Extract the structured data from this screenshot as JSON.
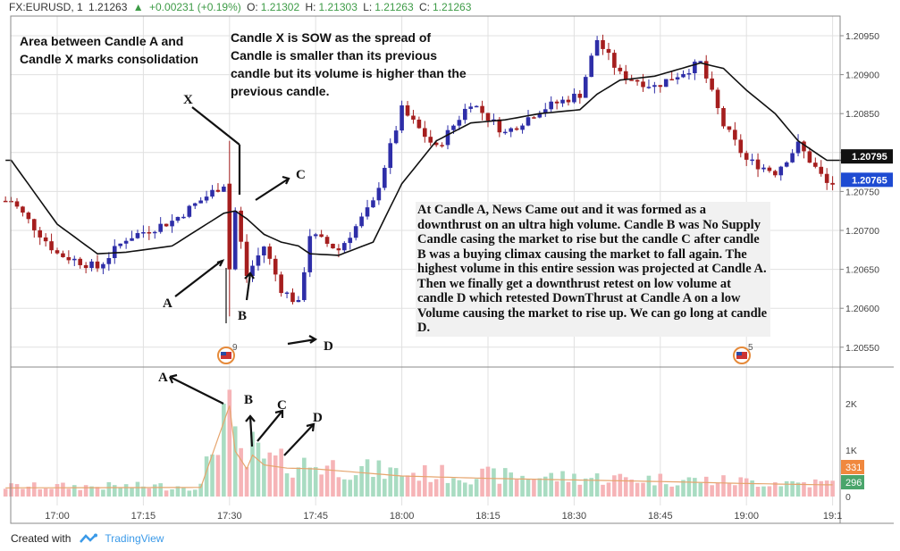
{
  "header": {
    "symbol": "FX:EURUSD, 1",
    "price": "1.21263",
    "change": "+0.00231 (+0.19%)",
    "o_label": "O:",
    "o": "1.21302",
    "h_label": "H:",
    "h": "1.21303",
    "l_label": "L:",
    "l": "1.21263",
    "c_label": "C:",
    "c": "1.21263"
  },
  "annotations": {
    "box_left": "Area between Candle A and Candle X marks consolidation",
    "box_sow": "Candle X is SOW as the spread of Candle is smaller than its previous candle but its volume is higher than the previous candle.",
    "box_main": "At Candle A, News Came out and it was formed as a downthrust on an ultra high volume. Candle B was No Supply Candle casing the market to rise but the candle C after candle B was a buying climax causing the market to fall again. The highest volume in this entire session was projected at Candle A. Then we finally get a downthrust retest on low volume at candle D which retested DownThrust at Candle A on a low Volume causing the market to rise up. We can go long at candle D."
  },
  "footer": {
    "created_with": "Created with",
    "brand": "TradingView"
  },
  "colors": {
    "up": "#2e2ea8",
    "down": "#a51e1e",
    "ma": "#111111",
    "vol_up": "#a9dcc2",
    "vol_down": "#f6b4b7",
    "vol_ma": "#e6a56e",
    "grid": "#e0e0e0"
  },
  "chart_data": {
    "type": "candlestick",
    "x_ticks": [
      "17:00",
      "17:15",
      "17:30",
      "17:45",
      "18:00",
      "18:15",
      "18:30",
      "18:45",
      "19:00",
      "19:1"
    ],
    "y_ticks": [
      "1.20950",
      "1.20900",
      "1.20850",
      "1.20800",
      "1.20750",
      "1.20700",
      "1.20650",
      "1.20600",
      "1.20550"
    ],
    "price_labels": {
      "ma": "1.20795",
      "last": "1.20765"
    },
    "volume_ticks": [
      "2K",
      "1K",
      "0"
    ],
    "volume_labels": {
      "vol_ma": "331",
      "last_vol": "296"
    },
    "event_badges": [
      "9",
      "5"
    ],
    "point_labels": [
      "X",
      "A",
      "B",
      "C",
      "D"
    ],
    "volume_labels_letters": [
      "A",
      "B",
      "C",
      "D"
    ],
    "anchors": [
      "16:52",
      "17:00",
      "17:07",
      "17:12",
      "17:20",
      "17:29",
      "17:31",
      "17:33",
      "17:36",
      "17:39",
      "17:42",
      "17:44",
      "17:49",
      "17:55",
      "18:00",
      "18:06",
      "18:12",
      "18:18",
      "18:24",
      "18:31",
      "18:34",
      "18:38",
      "18:44",
      "18:52",
      "18:56",
      "19:00",
      "19:05",
      "19:09",
      "19:14"
    ],
    "anchor_close": [
      1.20738,
      1.2067,
      1.20652,
      1.2069,
      1.20712,
      1.2076,
      1.20725,
      1.20642,
      1.2068,
      1.20625,
      1.20605,
      1.20695,
      1.20675,
      1.20735,
      1.20855,
      1.20805,
      1.20865,
      1.20825,
      1.20855,
      1.20875,
      1.20945,
      1.209,
      1.20885,
      1.20915,
      1.20835,
      1.2079,
      1.20775,
      1.2081,
      1.2076
    ],
    "ma_anchor_values": [
      1.2079,
      1.20708,
      1.2067,
      1.20672,
      1.2068,
      1.20722,
      1.20725,
      1.20715,
      1.20695,
      1.20685,
      1.2068,
      1.2067,
      1.20668,
      1.20685,
      1.2076,
      1.20815,
      1.20838,
      1.20842,
      1.2085,
      1.20855,
      1.20875,
      1.20893,
      1.20898,
      1.20915,
      1.20908,
      1.2088,
      1.2085,
      1.20815,
      1.2079
    ],
    "volume_anchors": [
      "16:52",
      "17:25",
      "17:30",
      "17:31",
      "17:33",
      "17:34",
      "17:36",
      "17:40",
      "17:45",
      "18:00",
      "18:15",
      "18:30",
      "18:45",
      "19:00",
      "19:14"
    ],
    "volume_anchor_values": [
      220,
      230,
      2300,
      1150,
      700,
      1050,
      800,
      720,
      700,
      520,
      460,
      420,
      380,
      330,
      296
    ],
    "volume_range": [
      0,
      2400
    ],
    "price_range": [
      1.20535,
      1.2098
    ]
  }
}
